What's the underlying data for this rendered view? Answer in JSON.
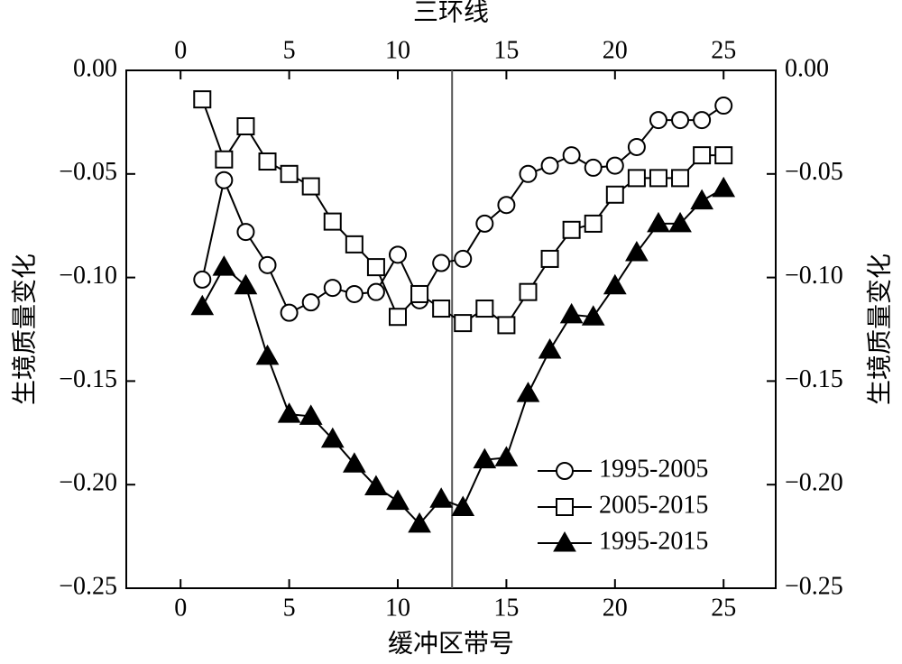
{
  "chart_data": {
    "type": "line",
    "xlabel": "缓冲区带号",
    "ylabel": "生境质量变化",
    "annotation": "三环线",
    "vline_x": 12.5,
    "x": [
      1,
      2,
      3,
      4,
      5,
      6,
      7,
      8,
      9,
      10,
      11,
      12,
      13,
      14,
      15,
      16,
      17,
      18,
      19,
      20,
      21,
      22,
      23,
      24,
      25
    ],
    "series": [
      {
        "name": "1995-2005",
        "color": "#000000",
        "marker": "circle",
        "values": [
          -0.101,
          -0.053,
          -0.078,
          -0.094,
          -0.117,
          -0.112,
          -0.105,
          -0.108,
          -0.107,
          -0.089,
          -0.111,
          -0.093,
          -0.091,
          -0.074,
          -0.065,
          -0.05,
          -0.046,
          -0.041,
          -0.047,
          -0.046,
          -0.037,
          -0.024,
          -0.024,
          -0.024,
          -0.017
        ]
      },
      {
        "name": "2005-2015",
        "color": "#000000",
        "marker": "square",
        "values": [
          -0.014,
          -0.043,
          -0.027,
          -0.044,
          -0.05,
          -0.056,
          -0.073,
          -0.084,
          -0.095,
          -0.119,
          -0.108,
          -0.115,
          -0.122,
          -0.115,
          -0.123,
          -0.107,
          -0.091,
          -0.077,
          -0.074,
          -0.06,
          -0.052,
          -0.052,
          -0.052,
          -0.041,
          -0.041
        ]
      },
      {
        "name": "1995-2015",
        "color": "#000000",
        "marker": "triangle",
        "values": [
          -0.114,
          -0.095,
          -0.104,
          -0.138,
          -0.166,
          -0.167,
          -0.178,
          -0.19,
          -0.201,
          -0.208,
          -0.219,
          -0.207,
          -0.211,
          -0.188,
          -0.187,
          -0.156,
          -0.135,
          -0.118,
          -0.119,
          -0.104,
          -0.088,
          -0.074,
          -0.074,
          -0.063,
          -0.057
        ]
      }
    ],
    "xlim": [
      -2.5,
      27.4
    ],
    "xticks": [
      0,
      5,
      10,
      15,
      20,
      25
    ],
    "ylim": [
      -0.25,
      0
    ],
    "yticks": [
      {
        "value": 0,
        "label": "0.00"
      },
      {
        "value": -0.05,
        "label": "−0.05"
      },
      {
        "value": -0.1,
        "label": "−0.10"
      },
      {
        "value": -0.15,
        "label": "−0.15"
      },
      {
        "value": -0.2,
        "label": "−0.20"
      },
      {
        "value": -0.25,
        "label": "−0.25"
      }
    ],
    "legend": "lower right",
    "grid": false
  }
}
